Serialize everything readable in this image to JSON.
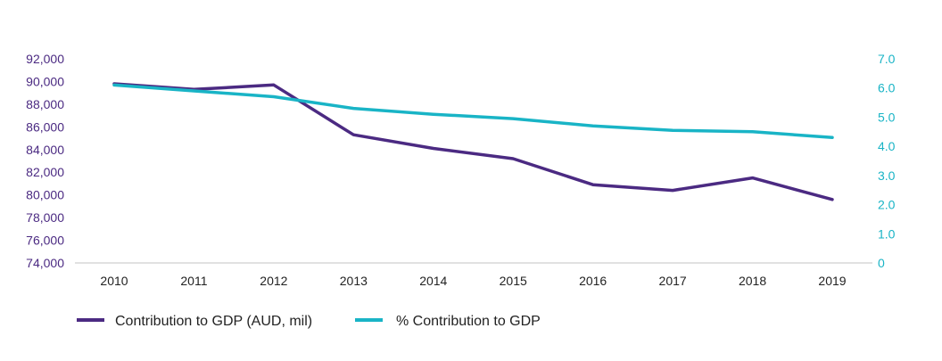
{
  "chart_data": {
    "type": "line",
    "title": "",
    "xlabel": "",
    "categories": [
      "2010",
      "2011",
      "2012",
      "2013",
      "2014",
      "2015",
      "2016",
      "2017",
      "2018",
      "2019"
    ],
    "left_axis": {
      "ylim": [
        74000,
        92000
      ],
      "ticks": [
        "74,000",
        "76,000",
        "78,000",
        "80,000",
        "82,000",
        "84,000",
        "86,000",
        "88,000",
        "90,000",
        "92,000"
      ],
      "tick_values": [
        74000,
        76000,
        78000,
        80000,
        82000,
        84000,
        86000,
        88000,
        90000,
        92000
      ],
      "color": "#4b2a82"
    },
    "right_axis": {
      "ylim": [
        0,
        7.0
      ],
      "ticks": [
        "0",
        "1.0",
        "2.0",
        "3.0",
        "4.0",
        "5.0",
        "6.0",
        "7.0"
      ],
      "tick_values": [
        0,
        1,
        2,
        3,
        4,
        5,
        6,
        7
      ],
      "color": "#19b4c6"
    },
    "series": [
      {
        "name": "Contribution to GDP (AUD, mil)",
        "axis": "left",
        "color": "#4b2a82",
        "values": [
          89800,
          89300,
          89700,
          85300,
          84100,
          83200,
          80900,
          80400,
          81500,
          79600
        ]
      },
      {
        "name": "% Contribution to GDP",
        "axis": "right",
        "color": "#19b4c6",
        "values": [
          6.1,
          5.9,
          5.7,
          5.3,
          5.1,
          4.95,
          4.7,
          4.55,
          4.5,
          4.3
        ]
      }
    ],
    "legend_position": "bottom-left",
    "grid": false
  }
}
